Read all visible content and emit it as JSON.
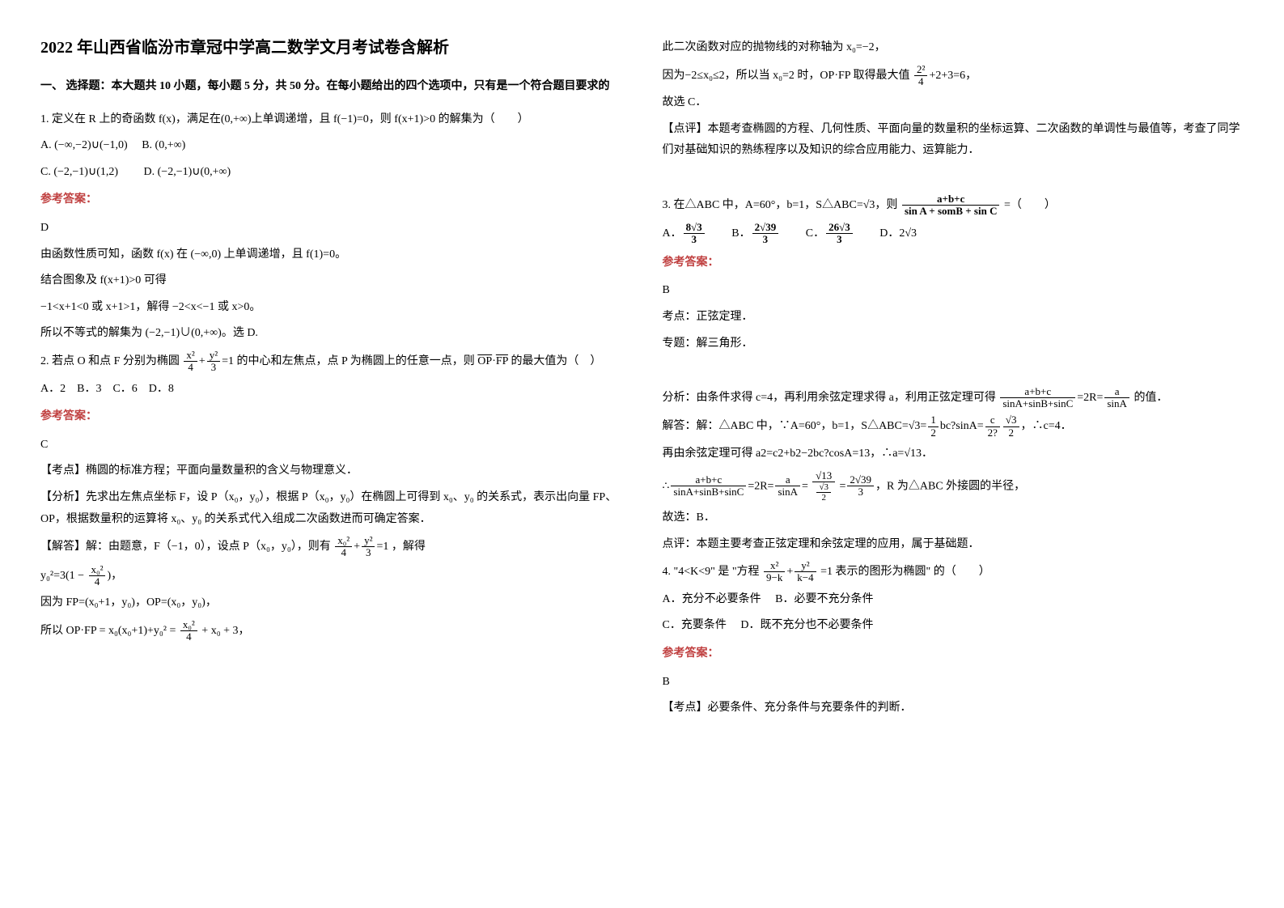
{
  "title": "2022 年山西省临汾市章冠中学高二数学文月考试卷含解析",
  "section1": "一、 选择题：本大题共 10 小题，每小题 5 分，共 50 分。在每小题给出的四个选项中，只有是一个符合题目要求的",
  "answerLabel": "参考答案：",
  "q1": {
    "stem": "1. 定义在 R 上的奇函数 f(x)，满足在(0,+∞)上单调递增，且 f(−1)=0，则 f(x+1)>0 的解集为（　　）",
    "optA": "A. (−∞,−2)∪(−1,0)",
    "optB": "B. (0,+∞)",
    "optC": "C. (−2,−1)∪(1,2)",
    "optD": "D. (−2,−1)∪(0,+∞)",
    "ans": "D",
    "exp1": "由函数性质可知，函数 f(x) 在 (−∞,0) 上单调递增，且 f(1)=0。",
    "exp2": "结合图象及 f(x+1)>0 可得",
    "exp3": "−1<x+1<0 或 x+1>1，解得 −2<x<−1 或 x>0。",
    "exp4": "所以不等式的解集为 (−2,−1)∪(0,+∞)。选 D."
  },
  "q2": {
    "stem_a": "2. 若点 O 和点 F 分别为椭圆 ",
    "stem_b": " 的中心和左焦点，点 P 为椭圆上的任意一点，则 ",
    "stem_c": " 的最大值为（　）",
    "opts": "A．2　B．3　C．6　D．8",
    "ans": "C",
    "kd": "【考点】椭圆的标准方程；平面向量数量积的含义与物理意义．",
    "fx": "【分析】先求出左焦点坐标 F，设 P（x₀，y₀），根据 P（x₀，y₀）在椭圆上可得到 x₀、y₀ 的关系式，表示出向量 FP、OP，根据数量积的运算将 x₀、y₀ 的关系式代入组成二次函数进而可确定答案．",
    "jd1": "【解答】解：由题意，F（−1，0），设点 P（x₀，y₀），则有 ",
    "jd1b": "，解得",
    "jd2a": "y₀²=3(1 − ",
    "jd2b": ")，",
    "jd3": "因为 FP=(x₀+1，y₀)，OP=(x₀，y₀)，",
    "jd4a": "所以 OP·FP = x₀(x₀+1)+y₀² = ",
    "jd4b": " + x₀ + 3，",
    "r1": "此二次函数对应的抛物线的对称轴为 x₀=−2，",
    "r2a": "因为−2≤x₀≤2，所以当 x₀=2 时，OP·FP 取得最大值 ",
    "r2b": "+2+3=6，",
    "r3": "故选 C．",
    "dp": "【点评】本题考查椭圆的方程、几何性质、平面向量的数量积的坐标运算、二次函数的单调性与最值等，考查了同学们对基础知识的熟练程序以及知识的综合应用能力、运算能力．"
  },
  "q3": {
    "stem_a": "3. 在△ABC 中，A=60°，b=1，S△ABC=√3，则 ",
    "stem_b": " =（　　）",
    "optsA": "A．",
    "optsB": "B．",
    "optsC": "C．",
    "optsD": "D．2√3",
    "ans": "B",
    "kd": "考点：正弦定理．",
    "zt": "专题：解三角形．",
    "fx_a": "分析：由条件求得 c=4，再利用余弦定理求得 a，利用正弦定理可得 ",
    "fx_b": " 的值．",
    "jd1_a": "解答：解：△ABC 中，∵A=60°，b=1，S△ABC=√3=",
    "jd1_b": "bc?sinA=",
    "jd1_c": "，∴c=4．",
    "jd2": "再由余弦定理可得 a2=c2+b2−2bc?cosA=13，∴a=√13．",
    "jd3_a": "∴",
    "jd3_b": "=2R=",
    "jd3_c": "=",
    "jd3_d": "=",
    "jd3_e": "，R 为△ABC 外接圆的半径，",
    "jd4": "故选：B．",
    "dp": "点评：本题主要考查正弦定理和余弦定理的应用，属于基础题．"
  },
  "q4": {
    "stem_a": "4. \"4<K<9\" 是 \"方程 ",
    "stem_b": "=1 表示的图形为椭圆\" 的（　　）",
    "optA": "A．充分不必要条件",
    "optB": "B．必要不充分条件",
    "optC": "C．充要条件",
    "optD": "D．既不充分也不必要条件",
    "ans": "B",
    "kd": "【考点】必要条件、充分条件与充要条件的判断．"
  },
  "fracs": {
    "x2_4": {
      "n": "x²",
      "d": "4"
    },
    "y2_3": {
      "n": "y²",
      "d": "3"
    },
    "x02_4": {
      "n": "x₀²",
      "d": "4"
    },
    "tt_4": {
      "n": "2²",
      "d": "4"
    },
    "abc_sin": {
      "n": "a+b+c",
      "d": "sin A + somB + sin C"
    },
    "eightsqrt3_3": {
      "n": "8√3",
      "d": "3"
    },
    "twosqrt39_3": {
      "n": "2√39",
      "d": "3"
    },
    "26sqrt3_3": {
      "n": "26√3",
      "d": "3"
    },
    "half": {
      "n": "1",
      "d": "2"
    },
    "c2": {
      "n": "c",
      "d": "2?"
    },
    "sqrt3_2": {
      "n": "√3",
      "d": "2"
    },
    "abc_sin2": {
      "n": "a+b+c",
      "d": "sinA+sinB+sinC"
    },
    "a_sinA": {
      "n": "a",
      "d": "sinA"
    },
    "sqrt13_over": {
      "n": "√13",
      "d": "√3"
    },
    "half2": {
      "n": "",
      "d": "2"
    },
    "x2_9k": {
      "n": "x²",
      "d": "9−k"
    },
    "y2_k4": {
      "n": "y²",
      "d": "k−4"
    }
  }
}
